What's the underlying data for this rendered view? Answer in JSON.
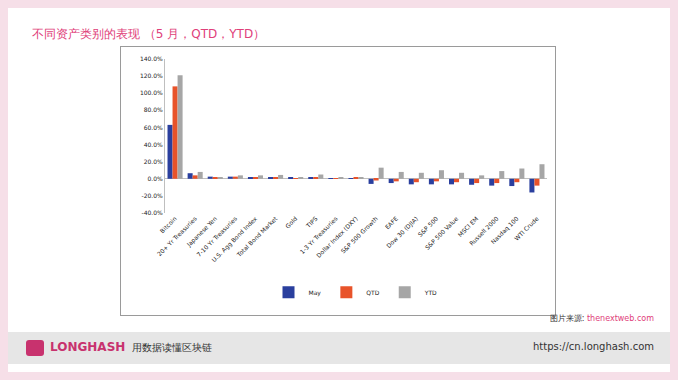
{
  "chart_data": {
    "type": "bar",
    "title": "不同资产类别的表现 （5 月，QTD，YTD）",
    "categories": [
      "Bitcoin",
      "20+ Yr Treasuries",
      "Japanese Yen",
      "7-10 Yr Treasuries",
      "U.S. Agg Bond Index",
      "Total Bond Market",
      "Gold",
      "TIPS",
      "1-3 Yr Treasuries",
      "Dollar Index (DXY)",
      "S&P 500 Growth",
      "EAFE",
      "Dow 30 (DJIA)",
      "S&P 500",
      "S&P 500 Value",
      "MSCI EM",
      "Russell 2000",
      "Nasdaq 100",
      "WTI Crude"
    ],
    "series": [
      {
        "name": "May",
        "color": "#2a3f9e",
        "values": [
          63,
          6.5,
          2.5,
          2.5,
          1.8,
          1.8,
          1.5,
          1.5,
          0.5,
          0.3,
          -6,
          -5,
          -6.5,
          -6.5,
          -6.5,
          -7,
          -8,
          -8.5,
          -16
        ]
      },
      {
        "name": "QTD",
        "color": "#e8532a",
        "values": [
          108,
          4,
          1.5,
          2.5,
          1.5,
          1.5,
          0.5,
          1,
          0.8,
          1,
          -2,
          -3,
          -4,
          -3,
          -4,
          -5,
          -5,
          -4,
          -8
        ]
      },
      {
        "name": "YTD",
        "color": "#a6a6a6",
        "values": [
          121,
          8,
          2,
          4,
          4,
          4.5,
          1,
          5,
          1.5,
          2,
          13,
          8,
          7,
          10,
          7,
          4,
          9,
          12,
          17
        ]
      }
    ],
    "ylim": [
      -40,
      140
    ],
    "yticks": [
      {
        "value": -40,
        "label": "-40.0%"
      },
      {
        "value": -20,
        "label": "-20.0%"
      },
      {
        "value": 0,
        "label": "0.0%"
      },
      {
        "value": 20,
        "label": "20.0%"
      },
      {
        "value": 40,
        "label": "40.0%"
      },
      {
        "value": 60,
        "label": "60.0%"
      },
      {
        "value": 80,
        "label": "80.0%"
      },
      {
        "value": 100,
        "label": "100.0%"
      },
      {
        "value": 120,
        "label": "120.0%"
      },
      {
        "value": 140,
        "label": "140.0%"
      }
    ],
    "grid": false,
    "legend": "bottom"
  },
  "source": {
    "prefix": "图片来源: ",
    "site": "thenextweb.com"
  },
  "footer": {
    "brand": "LONGHASH",
    "tagline": "用数据读懂区块链",
    "url": "https://cn.longhash.com"
  }
}
